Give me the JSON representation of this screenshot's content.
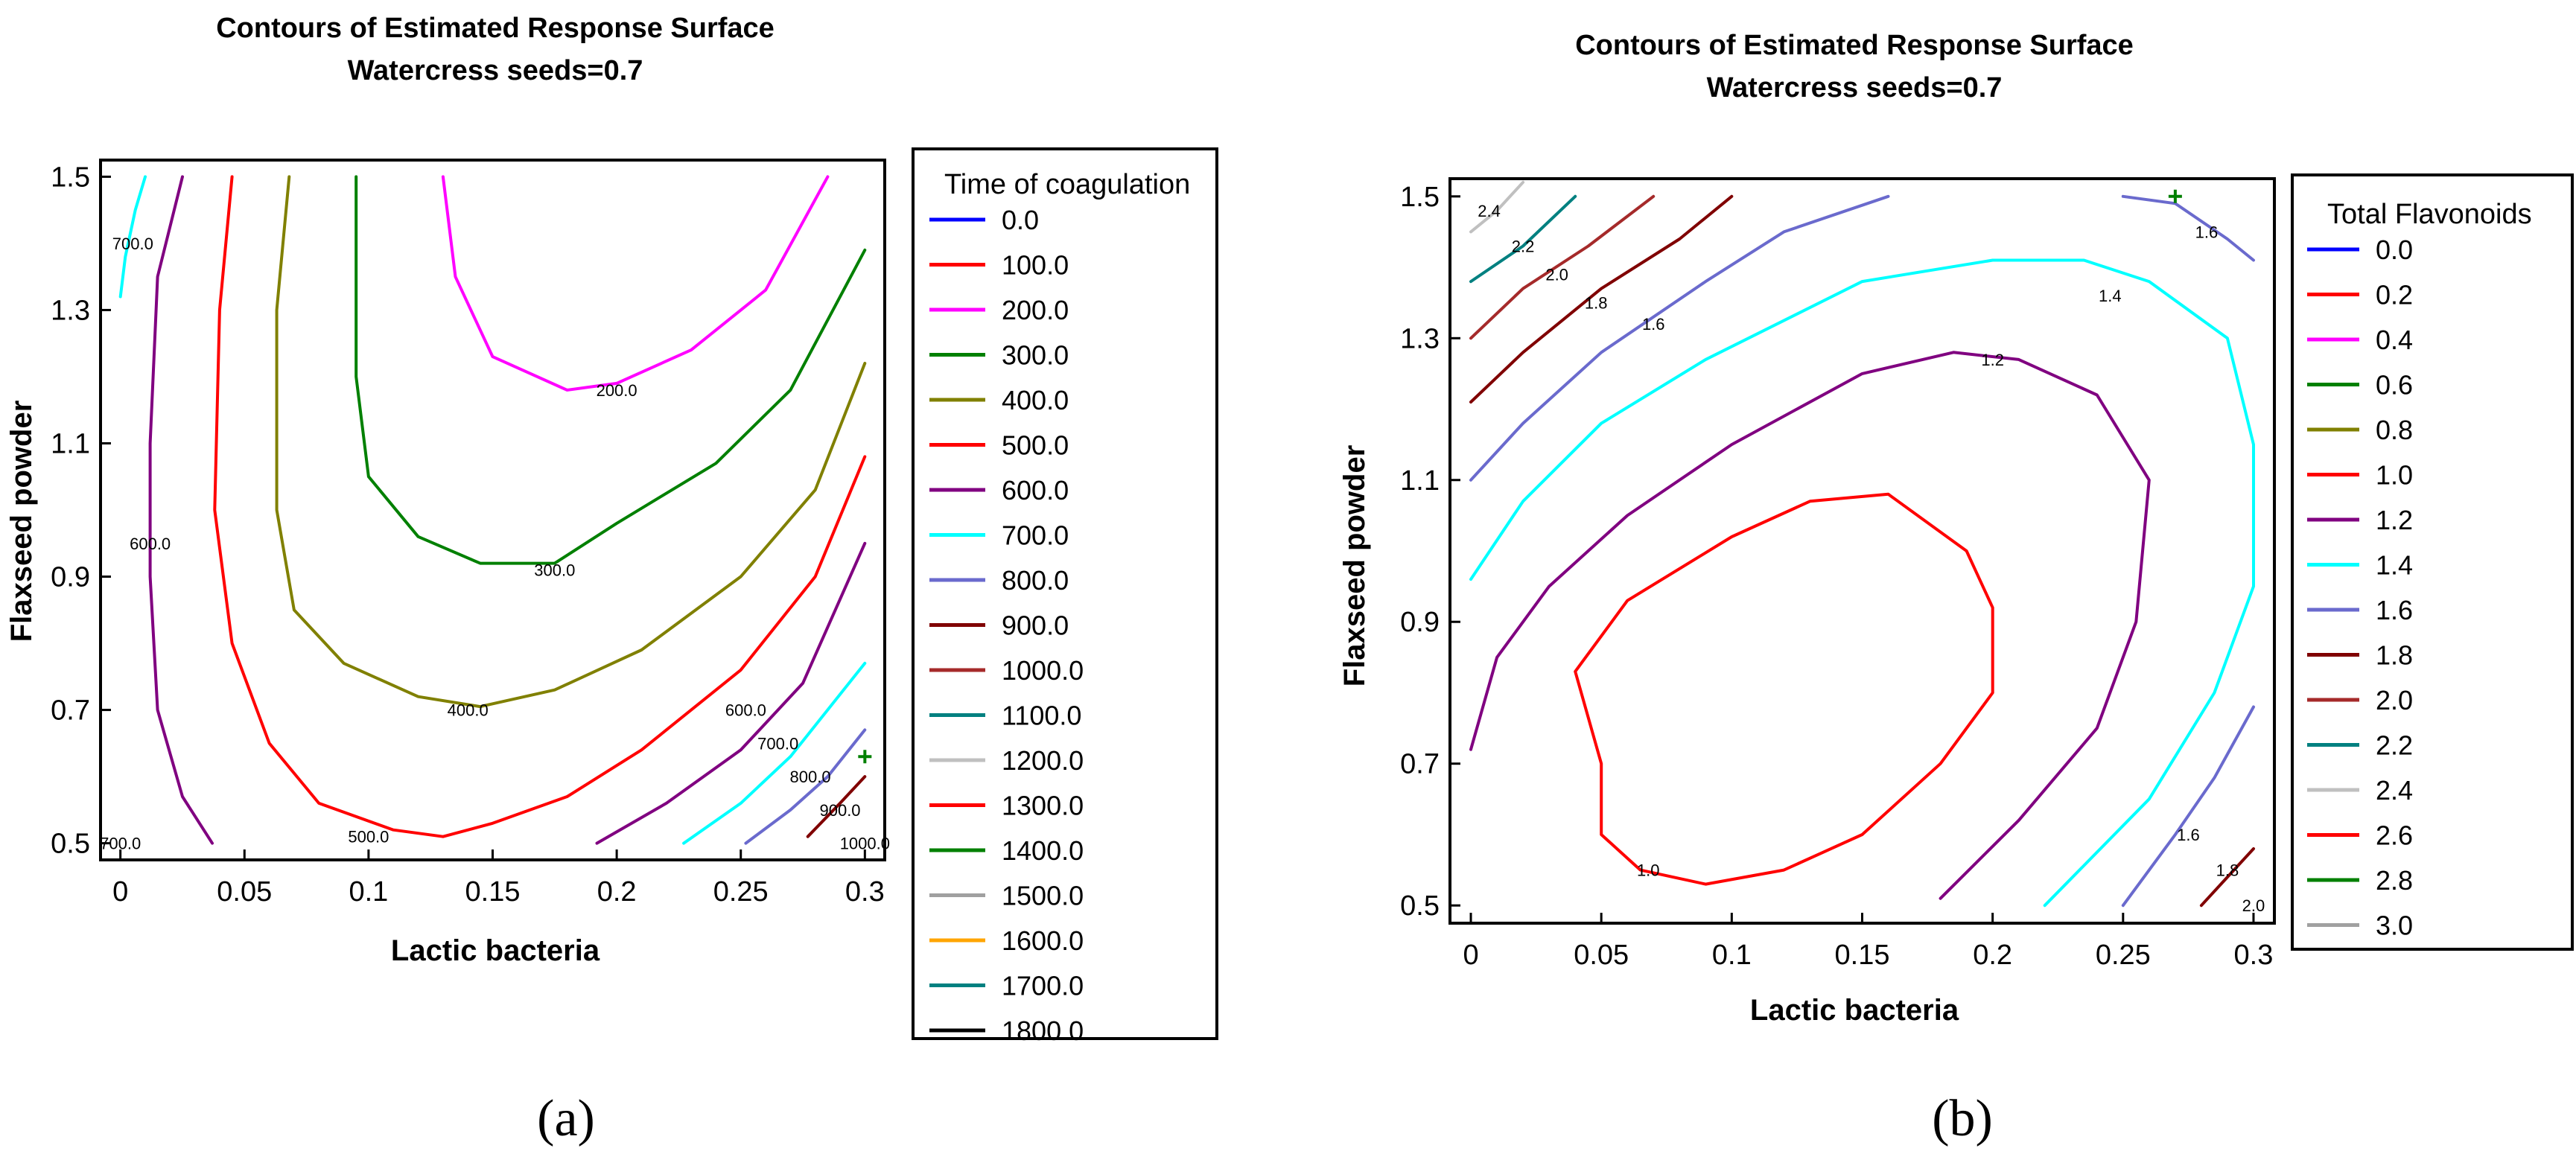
{
  "chart_data": [
    {
      "id": "a",
      "type": "contour",
      "title": "Contours of Estimated Response Surface",
      "subtitle": "Watercress seeds=0.7",
      "xlabel": "Lactic bacteria",
      "ylabel": "Flaxseed powder",
      "xlim": [
        -0.008,
        0.308
      ],
      "ylim": [
        0.475,
        1.525
      ],
      "xticks": [
        0,
        0.05,
        0.1,
        0.15,
        0.2,
        0.25,
        0.3
      ],
      "xtick_labels": [
        "0",
        "0.05",
        "0.1",
        "0.15",
        "0.2",
        "0.25",
        "0.3"
      ],
      "yticks": [
        0.5,
        0.7,
        0.9,
        1.1,
        1.3,
        1.5
      ],
      "ytick_labels": [
        "0.5",
        "0.7",
        "0.9",
        "1.1",
        "1.3",
        "1.5"
      ],
      "panel_label": "(a)",
      "legend": {
        "title": "Time of coagulation",
        "entries": [
          {
            "label": "0.0",
            "color": "#0000ff"
          },
          {
            "label": "100.0",
            "color": "#ff0000"
          },
          {
            "label": "200.0",
            "color": "#ff00ff"
          },
          {
            "label": "300.0",
            "color": "#008000"
          },
          {
            "label": "400.0",
            "color": "#808000"
          },
          {
            "label": "500.0",
            "color": "#ff0000"
          },
          {
            "label": "600.0",
            "color": "#800080"
          },
          {
            "label": "700.0",
            "color": "#00ffff"
          },
          {
            "label": "800.0",
            "color": "#6a6acd"
          },
          {
            "label": "900.0",
            "color": "#800000"
          },
          {
            "label": "1000.0",
            "color": "#a52a2a"
          },
          {
            "label": "1100.0",
            "color": "#008080"
          },
          {
            "label": "1200.0",
            "color": "#c0c0c0"
          },
          {
            "label": "1300.0",
            "color": "#ff0000"
          },
          {
            "label": "1400.0",
            "color": "#008000"
          },
          {
            "label": "1500.0",
            "color": "#a0a0a0"
          },
          {
            "label": "1600.0",
            "color": "#ffa500"
          },
          {
            "label": "1700.0",
            "color": "#008080"
          },
          {
            "label": "1800.0",
            "color": "#000000"
          }
        ]
      },
      "contours": [
        {
          "level": "200.0",
          "color": "#ff00ff",
          "points": [
            [
              0.13,
              1.5
            ],
            [
              0.135,
              1.35
            ],
            [
              0.15,
              1.23
            ],
            [
              0.18,
              1.18
            ],
            [
              0.2,
              1.19
            ],
            [
              0.23,
              1.24
            ],
            [
              0.26,
              1.33
            ],
            [
              0.285,
              1.5
            ]
          ]
        },
        {
          "level": "300.0",
          "color": "#008000",
          "points": [
            [
              0.095,
              1.5
            ],
            [
              0.095,
              1.2
            ],
            [
              0.1,
              1.05
            ],
            [
              0.12,
              0.96
            ],
            [
              0.145,
              0.92
            ],
            [
              0.175,
              0.92
            ],
            [
              0.2,
              0.98
            ],
            [
              0.24,
              1.07
            ],
            [
              0.27,
              1.18
            ],
            [
              0.3,
              1.39
            ]
          ]
        },
        {
          "level": "400.0",
          "color": "#808000",
          "points": [
            [
              0.068,
              1.5
            ],
            [
              0.063,
              1.3
            ],
            [
              0.063,
              1.0
            ],
            [
              0.07,
              0.85
            ],
            [
              0.09,
              0.77
            ],
            [
              0.12,
              0.72
            ],
            [
              0.145,
              0.705
            ],
            [
              0.175,
              0.73
            ],
            [
              0.21,
              0.79
            ],
            [
              0.25,
              0.9
            ],
            [
              0.28,
              1.03
            ],
            [
              0.3,
              1.22
            ]
          ]
        },
        {
          "level": "500.0",
          "color": "#ff0000",
          "points": [
            [
              0.045,
              1.5
            ],
            [
              0.04,
              1.3
            ],
            [
              0.038,
              1.0
            ],
            [
              0.045,
              0.8
            ],
            [
              0.06,
              0.65
            ],
            [
              0.08,
              0.56
            ],
            [
              0.11,
              0.52
            ],
            [
              0.13,
              0.51
            ],
            [
              0.15,
              0.53
            ],
            [
              0.18,
              0.57
            ],
            [
              0.21,
              0.64
            ],
            [
              0.25,
              0.76
            ],
            [
              0.28,
              0.9
            ],
            [
              0.3,
              1.08
            ]
          ]
        },
        {
          "level": "600.0",
          "color": "#800080",
          "points": [
            [
              0.025,
              1.5
            ],
            [
              0.015,
              1.35
            ],
            [
              0.012,
              1.1
            ],
            [
              0.012,
              0.9
            ],
            [
              0.015,
              0.7
            ],
            [
              0.025,
              0.57
            ],
            [
              0.037,
              0.5
            ]
          ]
        },
        {
          "level": "600.0",
          "color": "#800080",
          "points": [
            [
              0.192,
              0.5
            ],
            [
              0.22,
              0.56
            ],
            [
              0.25,
              0.64
            ],
            [
              0.275,
              0.74
            ],
            [
              0.3,
              0.95
            ]
          ]
        },
        {
          "level": "700.0",
          "color": "#00ffff",
          "points": [
            [
              0.01,
              1.5
            ],
            [
              0.006,
              1.45
            ],
            [
              0.002,
              1.38
            ],
            [
              0,
              1.32
            ]
          ]
        },
        {
          "level": "700.0",
          "color": "#00ffff",
          "points": [
            [
              0.227,
              0.5
            ],
            [
              0.25,
              0.56
            ],
            [
              0.27,
              0.63
            ],
            [
              0.3,
              0.77
            ]
          ]
        },
        {
          "level": "800.0",
          "color": "#6a6acd",
          "points": [
            [
              0.252,
              0.5
            ],
            [
              0.27,
              0.55
            ],
            [
              0.285,
              0.6
            ],
            [
              0.3,
              0.67
            ]
          ]
        },
        {
          "level": "900.0",
          "color": "#800000",
          "points": [
            [
              0.277,
              0.51
            ],
            [
              0.29,
              0.56
            ],
            [
              0.3,
              0.6
            ]
          ]
        }
      ],
      "contour_labels": [
        {
          "text": "200.0",
          "x": 0.2,
          "y": 1.18
        },
        {
          "text": "300.0",
          "x": 0.175,
          "y": 0.91
        },
        {
          "text": "400.0",
          "x": 0.14,
          "y": 0.7
        },
        {
          "text": "500.0",
          "x": 0.1,
          "y": 0.51
        },
        {
          "text": "600.0",
          "x": 0.012,
          "y": 0.95
        },
        {
          "text": "700.0",
          "x": 0.005,
          "y": 1.4
        },
        {
          "text": "700.0",
          "x": 0.0,
          "y": 0.5
        },
        {
          "text": "600.0",
          "x": 0.252,
          "y": 0.7
        },
        {
          "text": "700.0",
          "x": 0.265,
          "y": 0.65
        },
        {
          "text": "800.0",
          "x": 0.278,
          "y": 0.6
        },
        {
          "text": "900.0",
          "x": 0.29,
          "y": 0.55
        },
        {
          "text": "1000.0",
          "x": 0.3,
          "y": 0.5
        }
      ],
      "marker": {
        "x": 0.3,
        "y": 0.63
      }
    },
    {
      "id": "b",
      "type": "contour",
      "title": "Contours of Estimated Response Surface",
      "subtitle": "Watercress seeds=0.7",
      "xlabel": "Lactic bacteria",
      "ylabel": "Flaxseed powder",
      "xlim": [
        -0.008,
        0.308
      ],
      "ylim": [
        0.475,
        1.525
      ],
      "xticks": [
        0,
        0.05,
        0.1,
        0.15,
        0.2,
        0.25,
        0.3
      ],
      "xtick_labels": [
        "0",
        "0.05",
        "0.1",
        "0.15",
        "0.2",
        "0.25",
        "0.3"
      ],
      "yticks": [
        0.5,
        0.7,
        0.9,
        1.1,
        1.3,
        1.5
      ],
      "ytick_labels": [
        "0.5",
        "0.7",
        "0.9",
        "1.1",
        "1.3",
        "1.5"
      ],
      "panel_label": "(b)",
      "legend": {
        "title": "Total Flavonoids",
        "entries": [
          {
            "label": "0.0",
            "color": "#0000ff"
          },
          {
            "label": "0.2",
            "color": "#ff0000"
          },
          {
            "label": "0.4",
            "color": "#ff00ff"
          },
          {
            "label": "0.6",
            "color": "#008000"
          },
          {
            "label": "0.8",
            "color": "#808000"
          },
          {
            "label": "1.0",
            "color": "#ff0000"
          },
          {
            "label": "1.2",
            "color": "#800080"
          },
          {
            "label": "1.4",
            "color": "#00ffff"
          },
          {
            "label": "1.6",
            "color": "#6a6acd"
          },
          {
            "label": "1.8",
            "color": "#800000"
          },
          {
            "label": "2.0",
            "color": "#a52a2a"
          },
          {
            "label": "2.2",
            "color": "#008080"
          },
          {
            "label": "2.4",
            "color": "#c0c0c0"
          },
          {
            "label": "2.6",
            "color": "#ff0000"
          },
          {
            "label": "2.8",
            "color": "#008000"
          },
          {
            "label": "3.0",
            "color": "#a0a0a0"
          }
        ]
      },
      "contours": [
        {
          "level": "1.0",
          "color": "#ff0000",
          "closed": true,
          "points": [
            [
              0.09,
              0.53
            ],
            [
              0.12,
              0.55
            ],
            [
              0.15,
              0.6
            ],
            [
              0.18,
              0.7
            ],
            [
              0.2,
              0.8
            ],
            [
              0.2,
              0.92
            ],
            [
              0.19,
              1.0
            ],
            [
              0.16,
              1.08
            ],
            [
              0.13,
              1.07
            ],
            [
              0.1,
              1.02
            ],
            [
              0.06,
              0.93
            ],
            [
              0.04,
              0.83
            ],
            [
              0.05,
              0.7
            ],
            [
              0.05,
              0.6
            ],
            [
              0.065,
              0.55
            ]
          ]
        },
        {
          "level": "1.2",
          "color": "#800080",
          "points": [
            [
              0,
              0.72
            ],
            [
              0.01,
              0.85
            ],
            [
              0.03,
              0.95
            ],
            [
              0.06,
              1.05
            ],
            [
              0.1,
              1.15
            ],
            [
              0.15,
              1.25
            ],
            [
              0.185,
              1.28
            ],
            [
              0.21,
              1.27
            ],
            [
              0.24,
              1.22
            ],
            [
              0.26,
              1.1
            ],
            [
              0.255,
              0.9
            ],
            [
              0.24,
              0.75
            ],
            [
              0.21,
              0.62
            ],
            [
              0.18,
              0.51
            ]
          ]
        },
        {
          "level": "1.4",
          "color": "#00ffff",
          "points": [
            [
              0,
              0.96
            ],
            [
              0.02,
              1.07
            ],
            [
              0.05,
              1.18
            ],
            [
              0.09,
              1.27
            ],
            [
              0.15,
              1.38
            ],
            [
              0.2,
              1.41
            ],
            [
              0.235,
              1.41
            ],
            [
              0.26,
              1.38
            ],
            [
              0.29,
              1.3
            ],
            [
              0.3,
              1.15
            ],
            [
              0.3,
              0.95
            ],
            [
              0.285,
              0.8
            ],
            [
              0.26,
              0.65
            ],
            [
              0.22,
              0.5
            ]
          ]
        },
        {
          "level": "1.6",
          "color": "#6a6acd",
          "points": [
            [
              0,
              1.1
            ],
            [
              0.02,
              1.18
            ],
            [
              0.05,
              1.28
            ],
            [
              0.09,
              1.38
            ],
            [
              0.12,
              1.45
            ],
            [
              0.16,
              1.5
            ]
          ]
        },
        {
          "level": "1.6",
          "color": "#6a6acd",
          "points": [
            [
              0.25,
              1.5
            ],
            [
              0.27,
              1.49
            ],
            [
              0.29,
              1.44
            ],
            [
              0.3,
              1.41
            ]
          ]
        },
        {
          "level": "1.6",
          "color": "#6a6acd",
          "points": [
            [
              0.25,
              0.5
            ],
            [
              0.27,
              0.6
            ],
            [
              0.285,
              0.68
            ],
            [
              0.3,
              0.78
            ]
          ]
        },
        {
          "level": "1.8",
          "color": "#800000",
          "points": [
            [
              0,
              1.21
            ],
            [
              0.02,
              1.28
            ],
            [
              0.05,
              1.37
            ],
            [
              0.08,
              1.44
            ],
            [
              0.1,
              1.5
            ]
          ]
        },
        {
          "level": "1.8",
          "color": "#800000",
          "points": [
            [
              0.28,
              0.5
            ],
            [
              0.29,
              0.54
            ],
            [
              0.3,
              0.58
            ]
          ]
        },
        {
          "level": "2.0",
          "color": "#a52a2a",
          "points": [
            [
              0,
              1.3
            ],
            [
              0.02,
              1.37
            ],
            [
              0.045,
              1.43
            ],
            [
              0.07,
              1.5
            ]
          ]
        },
        {
          "level": "2.2",
          "color": "#008080",
          "points": [
            [
              0,
              1.38
            ],
            [
              0.02,
              1.43
            ],
            [
              0.04,
              1.5
            ]
          ]
        },
        {
          "level": "2.4",
          "color": "#c0c0c0",
          "points": [
            [
              0,
              1.45
            ],
            [
              0.01,
              1.48
            ],
            [
              0.02,
              1.52
            ]
          ]
        }
      ],
      "contour_labels": [
        {
          "text": "2.4",
          "x": 0.007,
          "y": 1.48
        },
        {
          "text": "2.2",
          "x": 0.02,
          "y": 1.43
        },
        {
          "text": "2.0",
          "x": 0.033,
          "y": 1.39
        },
        {
          "text": "1.8",
          "x": 0.048,
          "y": 1.35
        },
        {
          "text": "1.6",
          "x": 0.07,
          "y": 1.32
        },
        {
          "text": "1.2",
          "x": 0.2,
          "y": 1.27
        },
        {
          "text": "1.4",
          "x": 0.245,
          "y": 1.36
        },
        {
          "text": "1.6",
          "x": 0.282,
          "y": 1.45
        },
        {
          "text": "1.0",
          "x": 0.068,
          "y": 0.55
        },
        {
          "text": "1.6",
          "x": 0.275,
          "y": 0.6
        },
        {
          "text": "1.8",
          "x": 0.29,
          "y": 0.55
        },
        {
          "text": "2.0",
          "x": 0.3,
          "y": 0.5
        }
      ],
      "marker": {
        "x": 0.27,
        "y": 1.5
      }
    }
  ]
}
